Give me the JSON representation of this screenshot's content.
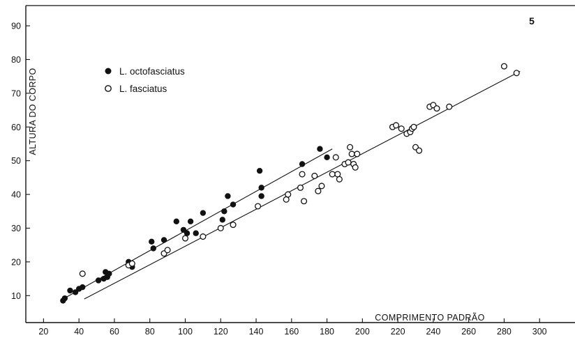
{
  "chart_data": {
    "type": "scatter",
    "panel_label": "5",
    "xlabel": "COMPRIMENTO PADRÃO",
    "ylabel": "ALTURA DO CORPO",
    "xlim": [
      10,
      320
    ],
    "ylim": [
      2,
      96
    ],
    "x_ticks": [
      20,
      40,
      60,
      80,
      100,
      120,
      140,
      160,
      180,
      200,
      220,
      240,
      260,
      280,
      300
    ],
    "y_ticks": [
      10,
      20,
      30,
      40,
      50,
      60,
      70,
      80,
      90
    ],
    "grid": false,
    "legend_position": "top-left",
    "series": [
      {
        "name": "L. octofasciatus",
        "marker": "filled-circle",
        "color": "#111111",
        "points": [
          [
            31,
            8.5
          ],
          [
            32,
            9.2
          ],
          [
            35,
            11.5
          ],
          [
            38,
            11.0
          ],
          [
            40,
            12.0
          ],
          [
            42,
            12.5
          ],
          [
            51,
            14.5
          ],
          [
            54,
            15.0
          ],
          [
            55,
            17.0
          ],
          [
            56,
            15.5
          ],
          [
            57,
            16.5
          ],
          [
            68,
            20.0
          ],
          [
            70,
            18.5
          ],
          [
            81,
            26.0
          ],
          [
            82,
            24.0
          ],
          [
            88,
            26.5
          ],
          [
            95,
            32.0
          ],
          [
            99,
            29.5
          ],
          [
            101,
            28.5
          ],
          [
            103,
            32.0
          ],
          [
            106,
            28.5
          ],
          [
            110,
            34.5
          ],
          [
            121,
            32.5
          ],
          [
            122,
            35.0
          ],
          [
            124,
            39.5
          ],
          [
            127,
            37.0
          ],
          [
            142,
            47.0
          ],
          [
            143,
            42.0
          ],
          [
            143,
            39.5
          ],
          [
            166,
            49.0
          ],
          [
            176,
            53.5
          ],
          [
            180,
            51.0
          ]
        ],
        "trend_line": [
          [
            31,
            9.0
          ],
          [
            183,
            53.5
          ]
        ]
      },
      {
        "name": "L. fasciatus",
        "marker": "open-circle",
        "color": "#111111",
        "points": [
          [
            42,
            16.5
          ],
          [
            68,
            19.0
          ],
          [
            70,
            19.5
          ],
          [
            88,
            22.5
          ],
          [
            90,
            23.5
          ],
          [
            100,
            27.0
          ],
          [
            110,
            27.5
          ],
          [
            120,
            30.0
          ],
          [
            127,
            31.0
          ],
          [
            141,
            36.5
          ],
          [
            157,
            38.5
          ],
          [
            158,
            40.0
          ],
          [
            165,
            42.0
          ],
          [
            166,
            46.0
          ],
          [
            167,
            38.0
          ],
          [
            173,
            45.5
          ],
          [
            175,
            41.0
          ],
          [
            177,
            42.5
          ],
          [
            183,
            46.0
          ],
          [
            185,
            51.0
          ],
          [
            186,
            46.0
          ],
          [
            187,
            44.5
          ],
          [
            190,
            49.0
          ],
          [
            192,
            49.5
          ],
          [
            193,
            54.0
          ],
          [
            194,
            52.0
          ],
          [
            195,
            49.0
          ],
          [
            196,
            48.0
          ],
          [
            197,
            52.0
          ],
          [
            217,
            60.0
          ],
          [
            219,
            60.5
          ],
          [
            222,
            59.5
          ],
          [
            225,
            58.0
          ],
          [
            227,
            58.5
          ],
          [
            228,
            59.5
          ],
          [
            229,
            60.0
          ],
          [
            230,
            54.0
          ],
          [
            232,
            53.0
          ],
          [
            238,
            66.0
          ],
          [
            240,
            66.5
          ],
          [
            242,
            65.5
          ],
          [
            249,
            66.0
          ],
          [
            280,
            78.0
          ],
          [
            287,
            76.0
          ]
        ],
        "trend_line": [
          [
            43,
            9.0
          ],
          [
            289,
            76.5
          ]
        ]
      }
    ]
  }
}
